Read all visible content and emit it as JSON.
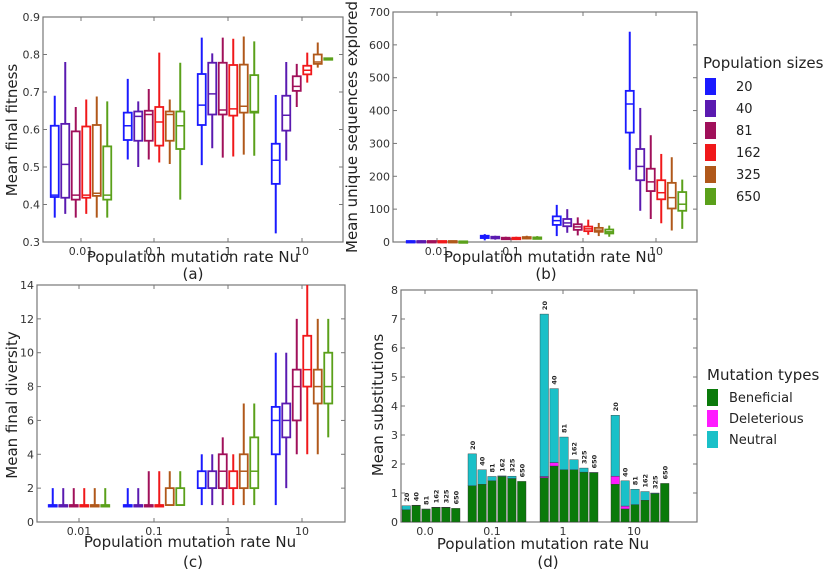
{
  "figure": {
    "colors": {
      "pop_20": "#1a1aff",
      "pop_40": "#5a1ab0",
      "pop_81": "#a0105a",
      "pop_162": "#f0181a",
      "pop_325": "#b0581a",
      "pop_650": "#5aa01a",
      "beneficial": "#0a7a0a",
      "deleterious": "#ff1aff",
      "neutral": "#1ac0c8"
    },
    "population_legend": {
      "title": "Population sizes",
      "entries": [
        "20",
        "40",
        "81",
        "162",
        "325",
        "650"
      ]
    },
    "mutation_legend": {
      "title": "Mutation types",
      "entries": [
        "Beneficial",
        "Deleterious",
        "Neutral"
      ]
    }
  },
  "chart_data": [
    {
      "id": "a",
      "panel_label": "(a)",
      "type": "box",
      "title": "",
      "xlabel": "Population mutation rate Nu",
      "ylabel": "Mean final fitness",
      "categories": [
        "0.01",
        "0.1",
        "1",
        "10"
      ],
      "series_names": [
        "20",
        "40",
        "81",
        "162",
        "325",
        "650"
      ],
      "ylim": [
        0.3,
        0.9
      ],
      "yticks": [
        "0.3",
        "0.4",
        "0.5",
        "0.6",
        "0.7",
        "0.8",
        "0.9"
      ],
      "grid": false,
      "boxes": [
        [
          [
            0.365,
            0.42,
            0.425,
            0.61,
            0.69
          ],
          [
            0.375,
            0.418,
            0.507,
            0.615,
            0.78
          ],
          [
            0.365,
            0.413,
            0.425,
            0.595,
            0.66
          ],
          [
            0.375,
            0.418,
            0.425,
            0.608,
            0.68
          ],
          [
            0.365,
            0.423,
            0.43,
            0.612,
            0.688
          ],
          [
            0.365,
            0.413,
            0.425,
            0.555,
            0.675
          ]
        ],
        [
          [
            0.52,
            0.572,
            0.61,
            0.645,
            0.735
          ],
          [
            0.5,
            0.57,
            0.635,
            0.648,
            0.675
          ],
          [
            0.52,
            0.57,
            0.64,
            0.65,
            0.708
          ],
          [
            0.512,
            0.557,
            0.62,
            0.66,
            0.805
          ],
          [
            0.508,
            0.57,
            0.64,
            0.648,
            0.68
          ],
          [
            0.413,
            0.548,
            0.61,
            0.648,
            0.778
          ]
        ],
        [
          [
            0.505,
            0.612,
            0.665,
            0.748,
            0.845
          ],
          [
            0.55,
            0.64,
            0.695,
            0.778,
            0.803
          ],
          [
            0.525,
            0.64,
            0.652,
            0.778,
            0.845
          ],
          [
            0.528,
            0.637,
            0.655,
            0.772,
            0.842
          ],
          [
            0.533,
            0.645,
            0.662,
            0.773,
            0.848
          ],
          [
            0.53,
            0.645,
            0.648,
            0.745,
            0.835
          ]
        ],
        [
          [
            0.323,
            0.455,
            0.518,
            0.562,
            0.692
          ],
          [
            0.517,
            0.597,
            0.638,
            0.69,
            0.78
          ],
          [
            0.66,
            0.703,
            0.715,
            0.742,
            0.775
          ],
          [
            0.725,
            0.747,
            0.758,
            0.77,
            0.805
          ],
          [
            0.765,
            0.775,
            0.78,
            0.8,
            0.832
          ],
          [
            0.785,
            0.786,
            0.788,
            0.79,
            0.792
          ]
        ]
      ]
    },
    {
      "id": "b",
      "panel_label": "(b)",
      "type": "box",
      "title": "",
      "xlabel": "Population mutation rate Nu",
      "ylabel": "Mean unique sequences explored",
      "categories": [
        "0.01",
        "0.1",
        "1",
        "10"
      ],
      "series_names": [
        "20",
        "40",
        "81",
        "162",
        "325",
        "650"
      ],
      "ylim": [
        0,
        700
      ],
      "yticks": [
        "0",
        "100",
        "200",
        "300",
        "400",
        "500",
        "600",
        "700"
      ],
      "grid": false,
      "boxes": [
        [
          [
            0,
            1,
            2,
            3,
            5
          ],
          [
            0,
            1,
            2,
            3,
            5
          ],
          [
            0,
            1,
            2,
            3,
            4
          ],
          [
            0,
            1,
            2,
            3,
            4
          ],
          [
            0,
            1,
            2,
            3,
            4
          ],
          [
            0,
            1,
            1,
            2,
            3
          ]
        ],
        [
          [
            5,
            12,
            15,
            19,
            24
          ],
          [
            7,
            11,
            13,
            16,
            19
          ],
          [
            8,
            10,
            12,
            13,
            16
          ],
          [
            6,
            10,
            12,
            13,
            16
          ],
          [
            8,
            11,
            13,
            15,
            19
          ],
          [
            8,
            10,
            12,
            14,
            18
          ]
        ],
        [
          [
            18,
            52,
            65,
            78,
            113
          ],
          [
            28,
            48,
            58,
            70,
            100
          ],
          [
            20,
            37,
            46,
            54,
            75
          ],
          [
            22,
            33,
            40,
            47,
            68
          ],
          [
            18,
            31,
            36,
            43,
            58
          ],
          [
            16,
            26,
            31,
            38,
            50
          ]
        ],
        [
          [
            220,
            333,
            420,
            460,
            640
          ],
          [
            95,
            188,
            230,
            283,
            408
          ],
          [
            70,
            155,
            183,
            223,
            325
          ],
          [
            57,
            130,
            150,
            188,
            268
          ],
          [
            35,
            102,
            135,
            180,
            258
          ],
          [
            40,
            95,
            115,
            152,
            190
          ]
        ]
      ]
    },
    {
      "id": "c",
      "panel_label": "(c)",
      "type": "box",
      "title": "",
      "xlabel": "Population mutation rate Nu",
      "ylabel": "Mean final diversity",
      "categories": [
        "0.01",
        "0.1",
        "1",
        "10"
      ],
      "series_names": [
        "20",
        "40",
        "81",
        "162",
        "325",
        "650"
      ],
      "ylim": [
        0,
        14
      ],
      "yticks": [
        "0",
        "2",
        "4",
        "6",
        "8",
        "10",
        "12",
        "14"
      ],
      "grid": false,
      "boxes": [
        [
          [
            1,
            1,
            1,
            1,
            2
          ],
          [
            1,
            1,
            1,
            1,
            2
          ],
          [
            1,
            1,
            1,
            1,
            2
          ],
          [
            1,
            1,
            1,
            1,
            2
          ],
          [
            1,
            1,
            1,
            1,
            2
          ],
          [
            1,
            1,
            1,
            1,
            2
          ]
        ],
        [
          [
            1,
            1,
            1,
            1,
            2
          ],
          [
            1,
            1,
            1,
            1,
            2
          ],
          [
            1,
            1,
            1,
            1,
            3
          ],
          [
            1,
            1,
            1,
            1,
            3
          ],
          [
            1,
            1,
            1,
            2,
            3
          ],
          [
            1,
            1,
            1,
            2,
            3
          ]
        ],
        [
          [
            1,
            2,
            2,
            3,
            4
          ],
          [
            1,
            2,
            2,
            3,
            4
          ],
          [
            1,
            2,
            3,
            4,
            5
          ],
          [
            1,
            2,
            2,
            3,
            4
          ],
          [
            1,
            2,
            3,
            4,
            7
          ],
          [
            1,
            2,
            3,
            5,
            7
          ]
        ],
        [
          [
            1,
            4,
            6,
            6.8,
            10
          ],
          [
            2,
            5,
            6,
            7,
            10
          ],
          [
            4,
            6,
            8,
            9,
            12
          ],
          [
            4,
            8,
            9,
            11,
            14
          ],
          [
            4,
            7,
            8,
            9,
            12
          ],
          [
            5,
            7,
            8,
            10,
            12
          ]
        ]
      ]
    },
    {
      "id": "d",
      "panel_label": "(d)",
      "type": "stacked-bar",
      "title": "",
      "xlabel": "Population mutation rate Nu",
      "ylabel": "Mean substitutions",
      "categories": [
        "0.0",
        "0.1",
        "1",
        "10"
      ],
      "bar_labels": [
        "20",
        "40",
        "81",
        "162",
        "325",
        "650"
      ],
      "ylim": [
        0,
        8
      ],
      "yticks": [
        "0",
        "1",
        "2",
        "3",
        "4",
        "5",
        "6",
        "7",
        "8"
      ],
      "grid": false,
      "stack_order": [
        "beneficial",
        "deleterious",
        "neutral"
      ],
      "groups": [
        {
          "beneficial": [
            0.42,
            0.57,
            0.44,
            0.5,
            0.5,
            0.47
          ],
          "deleterious": [
            0,
            0,
            0,
            0,
            0,
            0
          ],
          "neutral": [
            0.14,
            0.01,
            0.01,
            0.01,
            0.01,
            0.0
          ]
        },
        {
          "beneficial": [
            1.25,
            1.3,
            1.42,
            1.57,
            1.5,
            1.4
          ],
          "deleterious": [
            0,
            0,
            0,
            0,
            0,
            0
          ],
          "neutral": [
            1.1,
            0.5,
            0.15,
            0.02,
            0.08,
            0.0
          ]
        },
        {
          "beneficial": [
            1.53,
            1.93,
            1.8,
            1.8,
            1.72,
            1.7
          ],
          "deleterious": [
            0.04,
            0.12,
            0,
            0,
            0,
            0
          ],
          "neutral": [
            5.6,
            2.55,
            1.13,
            0.35,
            0.14,
            0.01
          ]
        },
        {
          "beneficial": [
            1.3,
            0.45,
            0.6,
            0.75,
            0.98,
            1.33
          ],
          "deleterious": [
            0.28,
            0.1,
            0,
            0,
            0,
            0
          ],
          "neutral": [
            2.1,
            0.87,
            0.53,
            0.3,
            0.02,
            0.0
          ]
        }
      ]
    }
  ]
}
